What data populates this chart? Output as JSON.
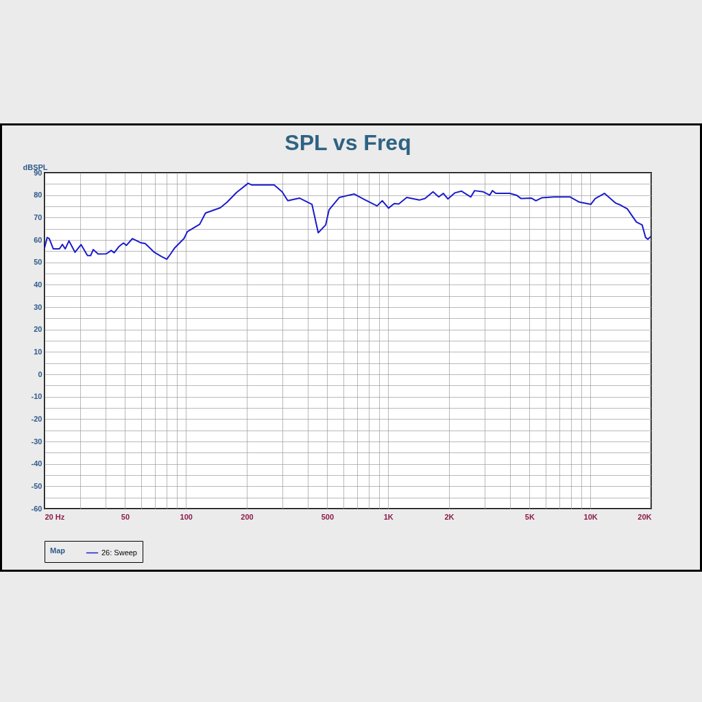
{
  "chart_data": {
    "type": "line",
    "title": "SPL vs Freq",
    "ylabel": "dBSPL",
    "legend_title": "Map",
    "log": "x",
    "grid": true,
    "legend": "bottom",
    "xlim": [
      20,
      20000
    ],
    "ylim": [
      -60,
      90
    ],
    "xticks": [
      {
        "value": 20,
        "label": "20  Hz"
      },
      {
        "value": 30,
        "label": null
      },
      {
        "value": 40,
        "label": null
      },
      50,
      {
        "value": 60,
        "label": null
      },
      {
        "value": 70,
        "label": null
      },
      {
        "value": 80,
        "label": null
      },
      {
        "value": 90,
        "label": null
      },
      100,
      200,
      {
        "value": 300,
        "label": null
      },
      {
        "value": 400,
        "label": null
      },
      500,
      {
        "value": 600,
        "label": null
      },
      {
        "value": 700,
        "label": null
      },
      {
        "value": 800,
        "label": null
      },
      {
        "value": 900,
        "label": null
      },
      {
        "value": 1000,
        "label": "1K"
      },
      {
        "value": 2000,
        "label": "2K"
      },
      {
        "value": 3000,
        "label": null
      },
      {
        "value": 4000,
        "label": null
      },
      {
        "value": 5000,
        "label": "5K"
      },
      {
        "value": 6000,
        "label": null
      },
      {
        "value": 7000,
        "label": null
      },
      {
        "value": 8000,
        "label": null
      },
      {
        "value": 9000,
        "label": null
      },
      {
        "value": 10000,
        "label": "10K"
      },
      {
        "value": 20000,
        "label": "20K"
      }
    ],
    "yticks": [
      -60,
      {
        "value": -55,
        "label": null
      },
      -50,
      {
        "value": -45,
        "label": null
      },
      -40,
      {
        "value": -35,
        "label": null
      },
      -30,
      {
        "value": -25,
        "label": null
      },
      -20,
      {
        "value": -15,
        "label": null
      },
      -10,
      {
        "value": -5,
        "label": null
      },
      0,
      {
        "value": 5,
        "label": null
      },
      10,
      {
        "value": 15,
        "label": null
      },
      20,
      {
        "value": 25,
        "label": null
      },
      30,
      {
        "value": 35,
        "label": null
      },
      40,
      {
        "value": 45,
        "label": null
      },
      50,
      {
        "value": 55,
        "label": null
      },
      60,
      {
        "value": 65,
        "label": null
      },
      70,
      {
        "value": 75,
        "label": null
      },
      80,
      {
        "value": 85,
        "label": null
      },
      90
    ],
    "series": [
      {
        "name": "26: Sweep",
        "color": "#1a1acc",
        "x": [
          20,
          20.6,
          21.1,
          22.1,
          23.7,
          24.5,
          25.3,
          26.4,
          28.3,
          30.3,
          32.6,
          33.8,
          34.8,
          36.8,
          40.4,
          42.7,
          44.2,
          46.6,
          49.1,
          50.8,
          54.4,
          59.6,
          62.9,
          66.2,
          69.7,
          75.4,
          80.4,
          83.6,
          88.1,
          97.8,
          101.7,
          117,
          125,
          148,
          160,
          178,
          203,
          211,
          243,
          273,
          299,
          319,
          364,
          420,
          451,
          491,
          510,
          574,
          680,
          764,
          881,
          936,
          1004,
          1071,
          1129,
          1236,
          1427,
          1522,
          1667,
          1779,
          1875,
          1973,
          2134,
          2307,
          2562,
          2676,
          2954,
          3177,
          3278,
          3408,
          3984,
          4308,
          4540,
          5104,
          5378,
          5738,
          6617,
          7943,
          8814,
          10039,
          10571,
          11734,
          13357,
          14078,
          15221,
          16883,
          18027,
          18748,
          19234,
          19844
        ],
        "values": [
          56.5,
          61.1,
          60.6,
          56,
          56,
          58,
          56,
          59.6,
          54.5,
          57.9,
          53,
          53,
          55.7,
          53.7,
          53.8,
          55.3,
          54.3,
          57,
          58.6,
          57.6,
          60.6,
          58.8,
          58.4,
          56.5,
          54.5,
          52.7,
          51.4,
          53.5,
          56.5,
          60.6,
          63.7,
          67,
          72,
          74.4,
          76.9,
          81.2,
          85.3,
          84.6,
          84.6,
          84.6,
          81.5,
          77.5,
          78.7,
          75.9,
          63.2,
          66.7,
          73.4,
          79,
          80.5,
          78,
          75.2,
          77.5,
          74.2,
          76.2,
          76.1,
          79,
          77.8,
          78.5,
          81.5,
          79.2,
          80.8,
          78.3,
          81,
          81.8,
          79.2,
          82,
          81.5,
          80,
          82,
          80.8,
          80.8,
          80,
          78.5,
          78.7,
          77.5,
          78.8,
          79.2,
          79.2,
          76.9,
          75.9,
          78.5,
          80.8,
          76.4,
          75.6,
          73.9,
          68,
          66.7,
          61.1,
          60.3,
          61.5
        ]
      }
    ]
  }
}
